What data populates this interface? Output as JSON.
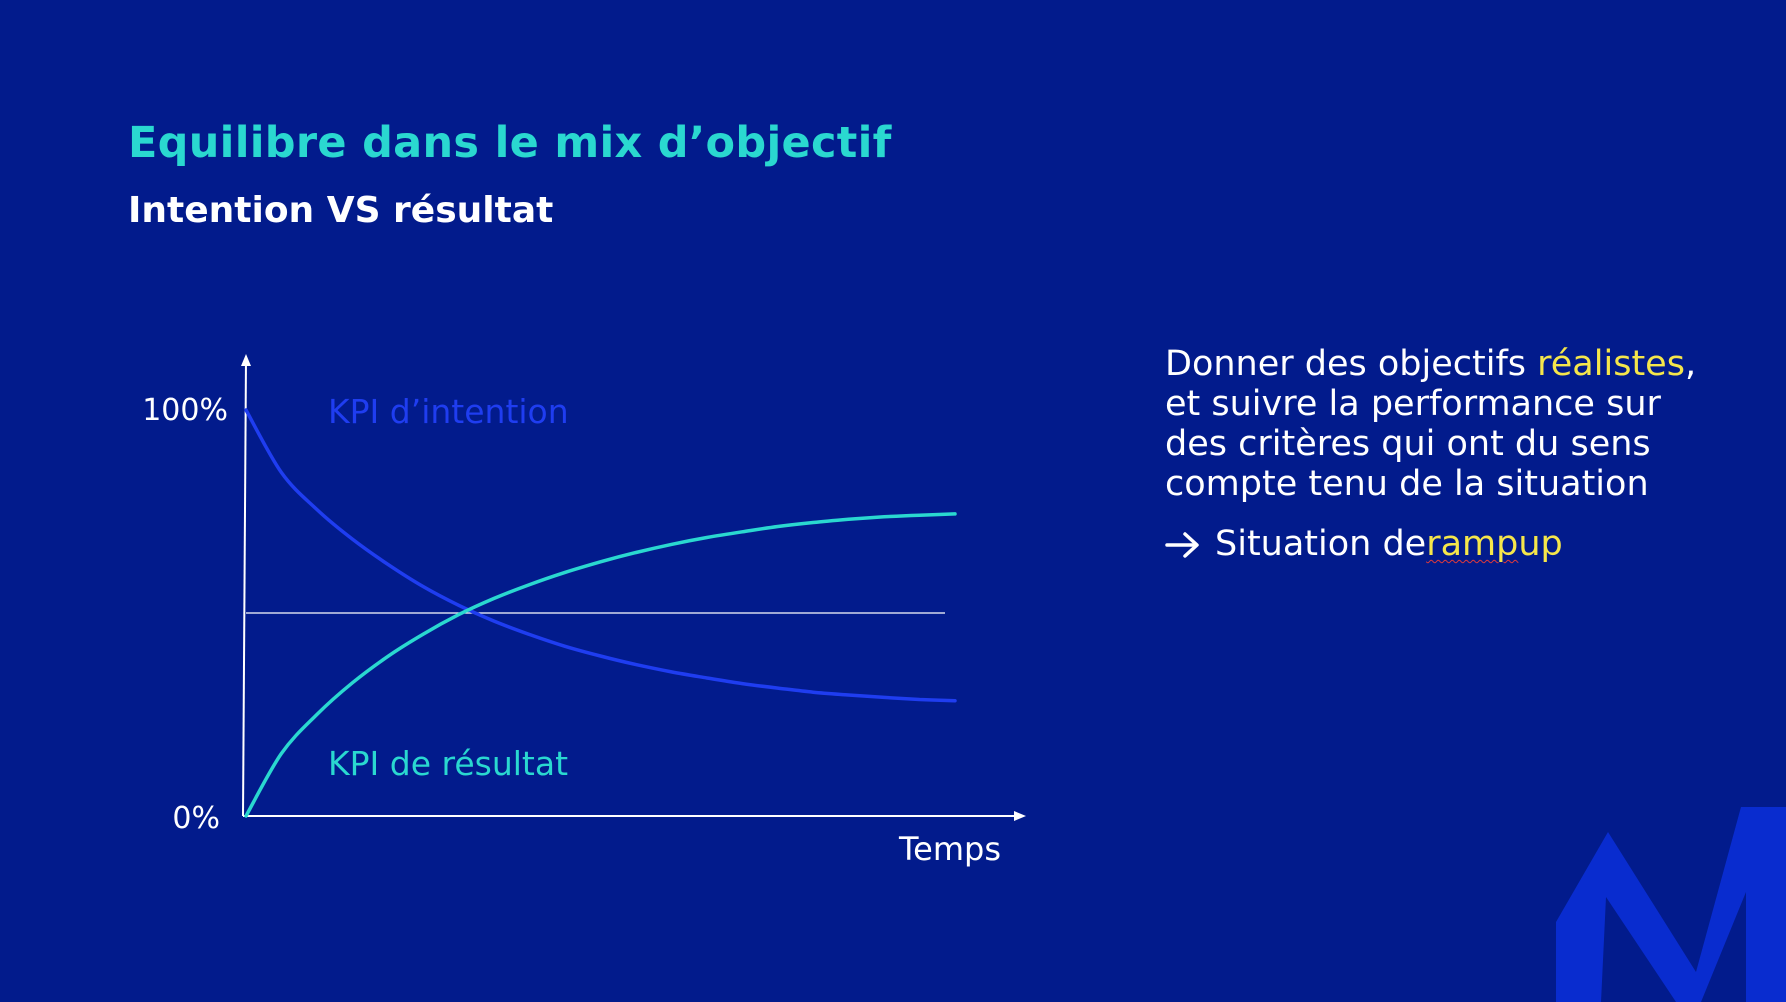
{
  "slide": {
    "title": "Equilibre dans le mix d’objectif",
    "subtitle": "Intention VS résultat"
  },
  "colors": {
    "background": "#021b8c",
    "accent_teal": "#2ad8d0",
    "intention_blue": "#1f3df0",
    "highlight_yellow": "#f5e64b",
    "logo_blue": "#0a2fd6"
  },
  "chart_data": {
    "type": "line",
    "x_axis_label": "Temps",
    "y_ticks": [
      "100%",
      "0%"
    ],
    "ylim": [
      0,
      100
    ],
    "xlim": [
      0,
      100
    ],
    "reference_line": {
      "y": 50
    },
    "series": [
      {
        "name": "KPI d’intention",
        "color": "#1f3df0",
        "x": [
          0,
          5,
          10,
          15,
          20,
          25,
          30,
          35,
          40,
          45,
          50,
          55,
          60,
          65,
          70,
          75,
          80,
          85,
          90,
          95,
          100
        ],
        "values": [
          100,
          84.6,
          75.5,
          68.2,
          62.0,
          56.5,
          51.9,
          48.0,
          44.7,
          41.8,
          39.4,
          37.3,
          35.5,
          34.0,
          32.6,
          31.5,
          30.5,
          29.8,
          29.2,
          28.7,
          28.4
        ]
      },
      {
        "name": "KPI de résultat",
        "color": "#2ad8d0",
        "x": [
          0,
          5,
          10,
          15,
          20,
          25,
          30,
          35,
          40,
          45,
          50,
          55,
          60,
          65,
          70,
          75,
          80,
          85,
          90,
          95,
          100
        ],
        "values": [
          0,
          15.4,
          25.0,
          32.8,
          39.3,
          44.8,
          49.6,
          53.6,
          57.0,
          60.0,
          62.6,
          64.9,
          66.9,
          68.6,
          70.0,
          71.3,
          72.3,
          73.1,
          73.7,
          74.1,
          74.4
        ]
      }
    ]
  },
  "side": {
    "line_1a": "Donner des objectifs ",
    "line_1b": "réalistes",
    "line_1c": ",",
    "line_2": "et suivre la performance sur",
    "line_3": "des critères qui ont du sens",
    "line_4": "compte tenu de la situation",
    "arrow_icon": "arrow-right-icon",
    "ramp_prefix": "Situation de ",
    "ramp_word": "ramp",
    "ramp_suffix": " up"
  },
  "logo_icon": "m-logo-icon"
}
